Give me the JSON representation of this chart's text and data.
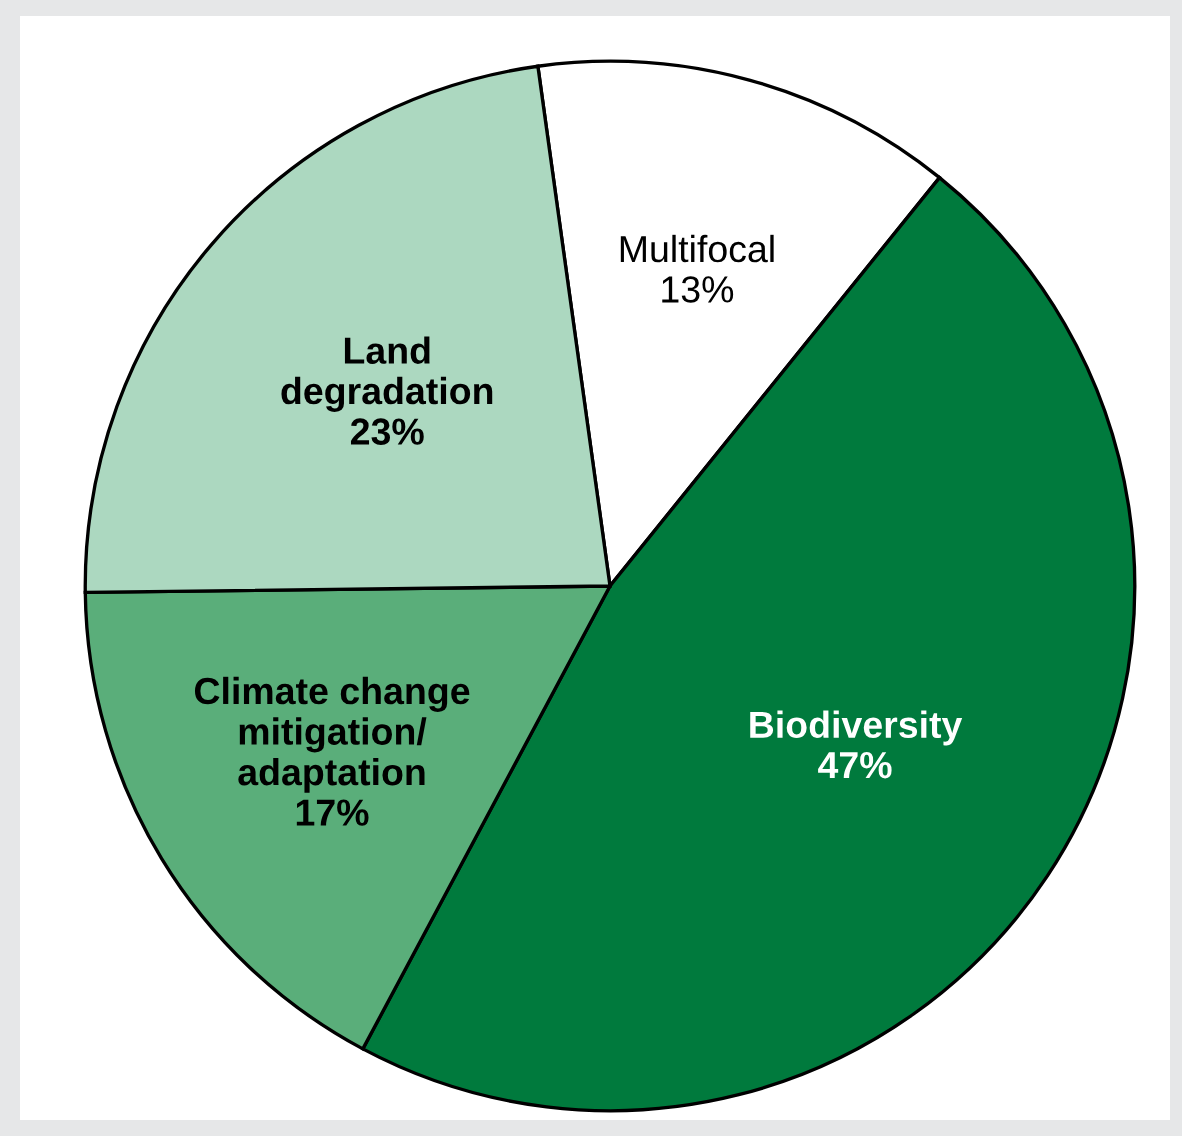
{
  "chart_data": {
    "type": "pie",
    "categories": [
      "Multifocal",
      "Biodiversity",
      "Climate change\nmitigation/\nadaptation",
      "Land\ndegradation"
    ],
    "values": [
      13,
      47,
      17,
      23
    ],
    "value_labels": [
      "13%",
      "47%",
      "17%",
      "23%"
    ],
    "colors": [
      "#ffffff",
      "#007a3d",
      "#5aae7a",
      "#acd8c0"
    ]
  }
}
